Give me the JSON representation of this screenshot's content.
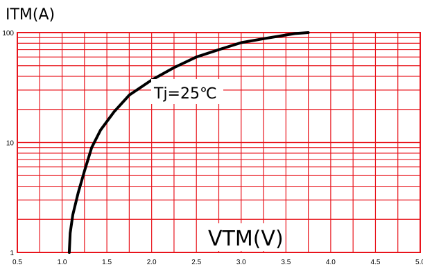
{
  "chart_data": {
    "type": "line",
    "ylabel": "ITM(A)",
    "xlabel": "VTM(V)",
    "annotation": "Tj=25℃",
    "xlim": [
      0.5,
      5.0
    ],
    "ylim": [
      1,
      100
    ],
    "yscale": "log",
    "x_ticks": [
      "0.5",
      "1.0",
      "1.5",
      "2.0",
      "2.5",
      "3.0",
      "3.5",
      "4.0",
      "4.5",
      "5.0"
    ],
    "y_ticks": [
      "1",
      "10",
      "100"
    ],
    "grid": true,
    "grid_color": "#e8141c",
    "curve_color": "#000000",
    "series": [
      {
        "x": [
          1.08,
          1.09,
          1.12,
          1.18,
          1.25,
          1.33,
          1.43,
          1.58,
          1.75,
          2.0,
          2.25,
          2.5,
          2.75,
          3.0,
          3.25,
          3.5,
          3.6,
          3.75
        ],
        "y": [
          1,
          1.5,
          2.2,
          3.5,
          5.5,
          9,
          13,
          19,
          27,
          37,
          48,
          60,
          70,
          81,
          88,
          95,
          98,
          100
        ]
      }
    ]
  }
}
